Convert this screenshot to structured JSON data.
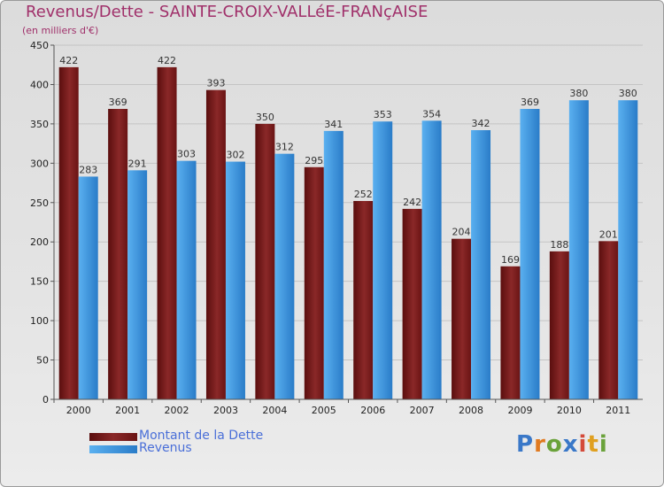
{
  "header": {
    "title": "Revenus/Dette - SAINTE-CROIX-VALLéE-FRANçAISE",
    "subtitle": "(en milliers d'€)"
  },
  "logo": {
    "letters": [
      "P",
      "r",
      "o",
      "x",
      "i",
      "t",
      "i"
    ]
  },
  "colors": {
    "dette": "#7a1a1a",
    "revenus": "#3a9ae0"
  },
  "chart_data": {
    "type": "bar",
    "title": "Revenus/Dette - SAINTE-CROIX-VALLéE-FRANçAISE",
    "ylabel": "(en milliers d'€)",
    "xlabel": "",
    "ylim": [
      0,
      450
    ],
    "yticks": [
      0,
      50,
      100,
      150,
      200,
      250,
      300,
      350,
      400,
      450
    ],
    "grid": true,
    "legend_position": "bottom-left",
    "categories": [
      "2000",
      "2001",
      "2002",
      "2003",
      "2004",
      "2005",
      "2006",
      "2007",
      "2008",
      "2009",
      "2010",
      "2011"
    ],
    "series": [
      {
        "name": "Montant de la Dette",
        "values": [
          422,
          369,
          422,
          393,
          350,
          295,
          252,
          242,
          204,
          169,
          188,
          201
        ]
      },
      {
        "name": "Revenus",
        "values": [
          283,
          291,
          303,
          302,
          312,
          341,
          353,
          354,
          342,
          369,
          380,
          380
        ]
      }
    ]
  }
}
